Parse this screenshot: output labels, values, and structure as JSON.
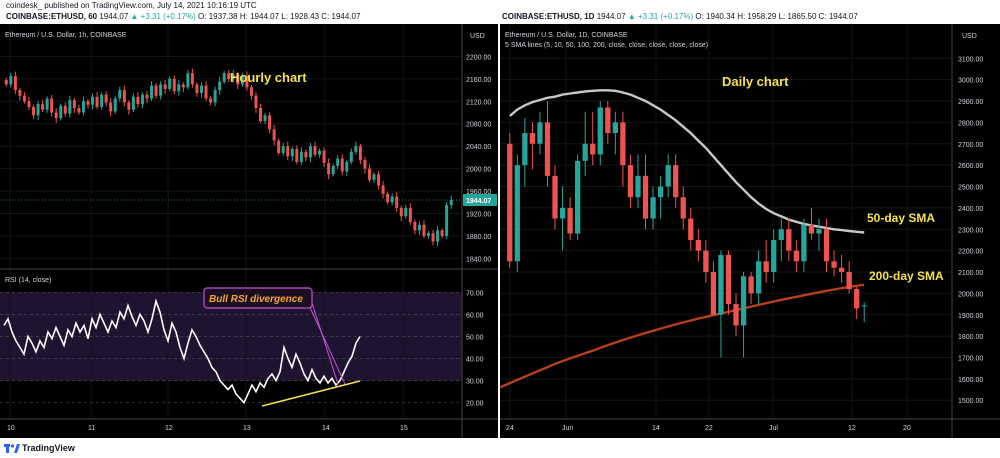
{
  "header": {
    "publisher": "coindesk_ published on TradingView.com, July 14, 2021 10:16:19 UTC",
    "left_ticker": {
      "symbol": "COINBASE:ETHUSD, 60",
      "price": "1944.07",
      "change": "▲ +3.31 (+0.17%)",
      "o": "O: 1937.38",
      "h": "H: 1944.07",
      "l": "L: 1928.43",
      "c": "C: 1944.07"
    },
    "right_ticker": {
      "symbol": "COINBASE:ETHUSD, 1D",
      "price": "1944.07",
      "change": "▲ +3.31 (+0.17%)",
      "o": "O: 1940.34",
      "h": "H: 1958.29",
      "l": "L: 1865.50",
      "c": "C: 1944.07"
    }
  },
  "footer": {
    "brand": "TradingView"
  },
  "colors": {
    "up": "#26a69a",
    "down": "#ef5350",
    "background": "#000000",
    "annotation": "#f5e14a",
    "rsi_line": "#ffffff",
    "rsi_band": "#1e1331",
    "divergence_box": "#c94fd6",
    "sma50": "#c8c8c8",
    "sma200": "#b7401b"
  },
  "chart_data": [
    {
      "type": "candlestick",
      "id": "hourly",
      "instrument": "Ethereum / U.S. Dollar, 1h, COINBASE",
      "annotation": "Hourly chart",
      "y_unit": "USD",
      "ylim": [
        1830,
        2215
      ],
      "y_ticks": [
        "2200.00",
        "2160.00",
        "2120.00",
        "2080.00",
        "2040.00",
        "2000.00",
        "1960.00",
        "1920.00",
        "1880.00",
        "1840.00"
      ],
      "last_price": "1944.07",
      "x_ticks": [
        "10",
        "11",
        "12",
        "13",
        "14",
        "15"
      ],
      "close": [
        2150,
        2165,
        2140,
        2130,
        2120,
        2110,
        2095,
        2115,
        2105,
        2125,
        2100,
        2090,
        2112,
        2098,
        2122,
        2108,
        2100,
        2120,
        2114,
        2128,
        2110,
        2132,
        2118,
        2102,
        2125,
        2140,
        2118,
        2105,
        2128,
        2115,
        2132,
        2125,
        2148,
        2130,
        2150,
        2142,
        2160,
        2138,
        2150,
        2145,
        2170,
        2150,
        2135,
        2148,
        2125,
        2118,
        2140,
        2155,
        2170,
        2160,
        2168,
        2150,
        2165,
        2145,
        2130,
        2108,
        2085,
        2095,
        2070,
        2050,
        2028,
        2040,
        2022,
        2035,
        2012,
        2030,
        2020,
        2040,
        2025,
        2032,
        2010,
        1990,
        2005,
        2018,
        1995,
        2012,
        2030,
        2040,
        2015,
        2000,
        1980,
        1990,
        1970,
        1955,
        1940,
        1950,
        1930,
        1915,
        1930,
        1905,
        1890,
        1900,
        1880,
        1885,
        1870,
        1890,
        1880,
        1935,
        1944
      ],
      "rsi": {
        "label": "RSI (14, close)",
        "ylim": [
          14,
          76
        ],
        "y_ticks": [
          "70.00",
          "60.00",
          "50.00",
          "40.00",
          "30.00",
          "20.00"
        ],
        "band": [
          30,
          70
        ],
        "values": [
          55,
          58,
          52,
          48,
          45,
          42,
          50,
          47,
          43,
          48,
          45,
          52,
          49,
          54,
          50,
          46,
          53,
          50,
          56,
          52,
          55,
          49,
          58,
          54,
          60,
          56,
          52,
          57,
          54,
          61,
          58,
          64,
          59,
          55,
          60,
          57,
          52,
          58,
          66,
          61,
          53,
          48,
          56,
          52,
          45,
          40,
          47,
          53,
          50,
          46,
          43,
          40,
          36,
          34,
          30,
          28,
          26,
          28,
          24,
          22,
          20,
          24,
          28,
          25,
          29,
          27,
          31,
          33,
          30,
          34,
          45,
          40,
          36,
          42,
          38,
          33,
          30,
          35,
          31,
          29,
          32,
          29,
          31,
          28,
          30,
          34,
          38,
          41,
          47,
          50
        ],
        "annotation": "Bull RSI divergence"
      }
    },
    {
      "type": "candlestick",
      "id": "daily",
      "instrument": "Ethereum / U.S. Dollar, 1D, COINBASE",
      "overlay_label": "5 SMA lines (5, 10, 50, 100, 200, close, close, close, close, close)",
      "annotation": "Daily chart",
      "y_unit": "USD",
      "ylim": [
        1445,
        3120
      ],
      "y_ticks": [
        "3100.00",
        "3000.00",
        "2900.00",
        "2800.00",
        "2700.00",
        "2600.00",
        "2500.00",
        "2400.00",
        "2300.00",
        "2200.00",
        "2100.00",
        "2000.00",
        "1900.00",
        "1800.00",
        "1700.00",
        "1600.00",
        "1500.00"
      ],
      "last_price": "1944.07",
      "x_ticks": [
        "24",
        "Jun",
        "14",
        "22",
        "Jul",
        "12",
        "20"
      ],
      "ohlc": [
        [
          2700,
          2750,
          2120,
          2150
        ],
        [
          2150,
          2650,
          2100,
          2600
        ],
        [
          2600,
          2820,
          2500,
          2750
        ],
        [
          2750,
          2800,
          2580,
          2700
        ],
        [
          2700,
          2850,
          2650,
          2800
        ],
        [
          2800,
          2900,
          2500,
          2550
        ],
        [
          2550,
          2600,
          2300,
          2350
        ],
        [
          2350,
          2500,
          2200,
          2400
        ],
        [
          2400,
          2450,
          2250,
          2280
        ],
        [
          2280,
          2650,
          2250,
          2620
        ],
        [
          2620,
          2850,
          2550,
          2700
        ],
        [
          2700,
          2850,
          2600,
          2650
        ],
        [
          2650,
          2900,
          2600,
          2870
        ],
        [
          2870,
          2900,
          2700,
          2750
        ],
        [
          2750,
          2850,
          2650,
          2800
        ],
        [
          2800,
          2850,
          2500,
          2600
        ],
        [
          2600,
          2650,
          2400,
          2450
        ],
        [
          2450,
          2650,
          2400,
          2550
        ],
        [
          2550,
          2650,
          2300,
          2350
        ],
        [
          2350,
          2500,
          2300,
          2450
        ],
        [
          2450,
          2550,
          2350,
          2500
        ],
        [
          2500,
          2650,
          2450,
          2600
        ],
        [
          2600,
          2650,
          2400,
          2450
        ],
        [
          2450,
          2500,
          2300,
          2350
        ],
        [
          2350,
          2400,
          2200,
          2250
        ],
        [
          2250,
          2300,
          2150,
          2200
        ],
        [
          2200,
          2250,
          2050,
          2100
        ],
        [
          2100,
          2150,
          1900,
          1900
        ],
        [
          1900,
          2200,
          1700,
          2180
        ],
        [
          2180,
          2200,
          1900,
          1950
        ],
        [
          1950,
          2000,
          1800,
          1850
        ],
        [
          1850,
          2100,
          1700,
          2080
        ],
        [
          2080,
          2100,
          1950,
          2000
        ],
        [
          2000,
          2200,
          1950,
          2150
        ],
        [
          2150,
          2250,
          2050,
          2100
        ],
        [
          2100,
          2300,
          2050,
          2250
        ],
        [
          2250,
          2350,
          2150,
          2300
        ],
        [
          2300,
          2350,
          2150,
          2200
        ],
        [
          2200,
          2250,
          2100,
          2150
        ],
        [
          2150,
          2350,
          2100,
          2320
        ],
        [
          2320,
          2400,
          2250,
          2280
        ],
        [
          2280,
          2350,
          2200,
          2300
        ],
        [
          2300,
          2350,
          2100,
          2150
        ],
        [
          2150,
          2200,
          2080,
          2120
        ],
        [
          2120,
          2180,
          2050,
          2100
        ],
        [
          2100,
          2150,
          2000,
          2020
        ],
        [
          2020,
          2030,
          1880,
          1930
        ],
        [
          1940,
          1958,
          1865,
          1944
        ]
      ],
      "series": [
        {
          "name": "50-day SMA",
          "values": [
            2830,
            2860,
            2880,
            2895,
            2905,
            2915,
            2920,
            2930,
            2935,
            2940,
            2945,
            2948,
            2950,
            2950,
            2948,
            2940,
            2930,
            2915,
            2900,
            2880,
            2860,
            2835,
            2810,
            2780,
            2750,
            2715,
            2680,
            2640,
            2600,
            2560,
            2520,
            2485,
            2450,
            2420,
            2395,
            2375,
            2360,
            2345,
            2335,
            2325,
            2318,
            2312,
            2306,
            2300,
            2296,
            2292,
            2288,
            2285
          ]
        },
        {
          "name": "200-day SMA",
          "values": [
            1580,
            1595,
            1610,
            1625,
            1640,
            1655,
            1670,
            1683,
            1696,
            1708,
            1720,
            1732,
            1745,
            1758,
            1770,
            1782,
            1793,
            1804,
            1815,
            1825,
            1835,
            1845,
            1855,
            1864,
            1873,
            1882,
            1890,
            1898,
            1906,
            1914,
            1922,
            1930,
            1938,
            1946,
            1954,
            1962,
            1970,
            1977,
            1984,
            1991,
            1998,
            2005,
            2012,
            2018,
            2024,
            2030,
            2036,
            2040
          ]
        }
      ]
    }
  ]
}
